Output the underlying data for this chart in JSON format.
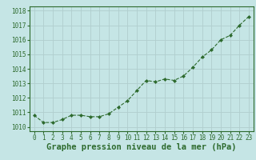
{
  "x": [
    0,
    1,
    2,
    3,
    4,
    5,
    6,
    7,
    8,
    9,
    10,
    11,
    12,
    13,
    14,
    15,
    16,
    17,
    18,
    19,
    20,
    21,
    22,
    23
  ],
  "y": [
    1010.8,
    1010.3,
    1010.3,
    1010.5,
    1010.8,
    1010.8,
    1010.7,
    1010.7,
    1010.9,
    1011.35,
    1011.8,
    1012.5,
    1013.2,
    1013.1,
    1013.3,
    1013.2,
    1013.5,
    1014.1,
    1014.8,
    1015.3,
    1016.0,
    1016.3,
    1017.0,
    1017.6
  ],
  "line_color": "#2d6a2d",
  "marker_color": "#2d6a2d",
  "bg_color": "#c5e5e5",
  "grid_color": "#b0cece",
  "ylabel_ticks": [
    1010,
    1011,
    1012,
    1013,
    1014,
    1015,
    1016,
    1017,
    1018
  ],
  "xlabel_ticks": [
    0,
    1,
    2,
    3,
    4,
    5,
    6,
    7,
    8,
    9,
    10,
    11,
    12,
    13,
    14,
    15,
    16,
    17,
    18,
    19,
    20,
    21,
    22,
    23
  ],
  "xlabel": "Graphe pression niveau de la mer (hPa)",
  "ylim": [
    1009.7,
    1018.3
  ],
  "xlim": [
    -0.5,
    23.5
  ],
  "tick_fontsize": 5.5,
  "label_fontsize": 7.5
}
